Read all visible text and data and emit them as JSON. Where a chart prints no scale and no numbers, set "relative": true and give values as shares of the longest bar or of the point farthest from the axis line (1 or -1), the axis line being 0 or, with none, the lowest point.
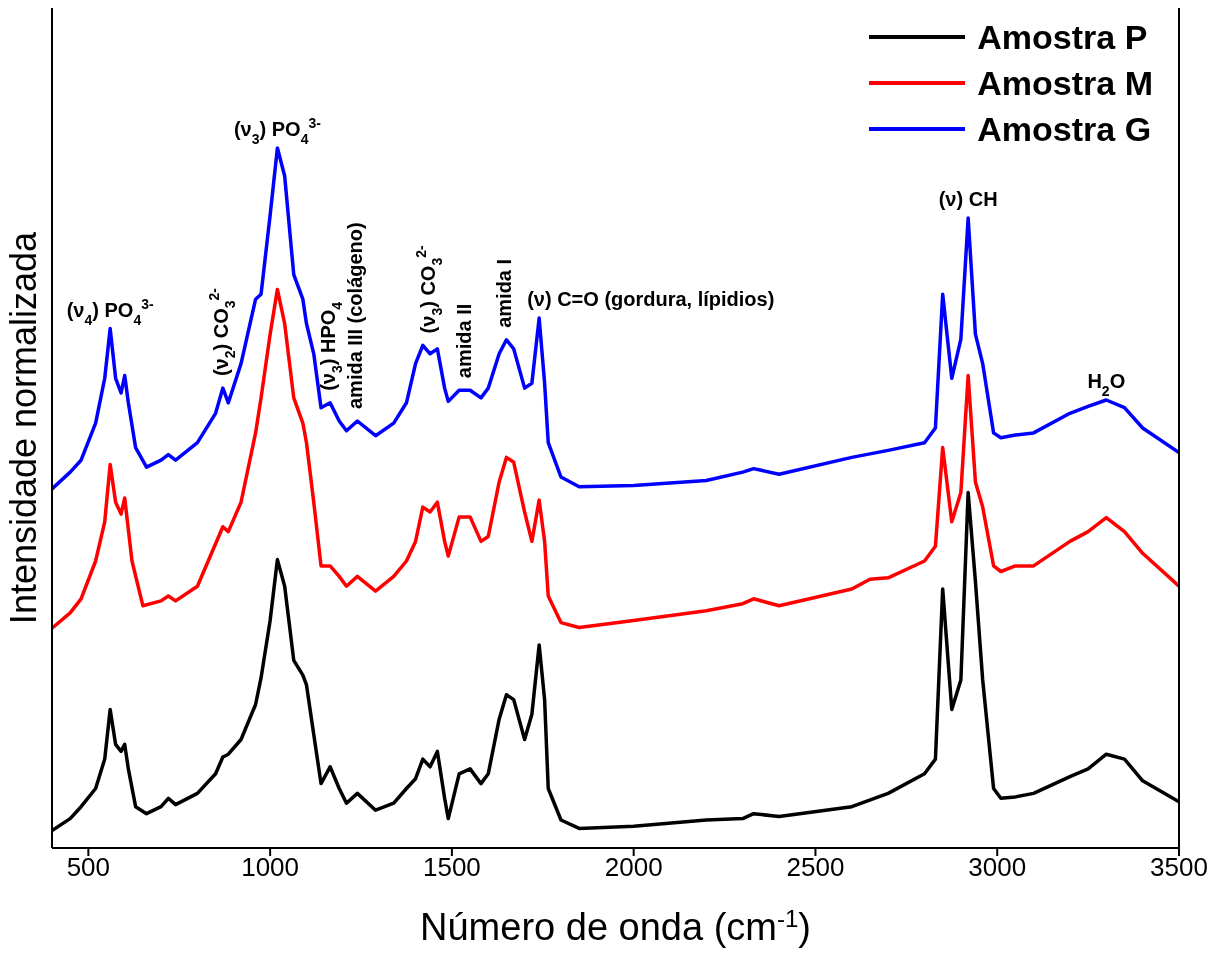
{
  "chart_data": {
    "type": "line",
    "relative": true,
    "xlabel": "Número de onda (cm$^{-1}$)",
    "ylabel": "Intensidade normalizada",
    "xlim": [
      400,
      3500
    ],
    "xticks": [
      500,
      1000,
      1500,
      2000,
      2500,
      3000,
      3500
    ],
    "grid": false,
    "legend": "top right",
    "marker": "none",
    "line_style": "solid",
    "series": [
      {
        "name": "Amostra P",
        "color": "#000000",
        "x": [
          400,
          450,
          480,
          520,
          545,
          560,
          575,
          590,
          600,
          610,
          630,
          660,
          700,
          720,
          740,
          800,
          850,
          870,
          885,
          920,
          960,
          975,
          1000,
          1020,
          1040,
          1065,
          1090,
          1100,
          1120,
          1140,
          1165,
          1190,
          1210,
          1240,
          1290,
          1340,
          1375,
          1400,
          1420,
          1440,
          1460,
          1480,
          1490,
          1520,
          1550,
          1580,
          1600,
          1630,
          1650,
          1670,
          1700,
          1720,
          1740,
          1755,
          1765,
          1800,
          1850,
          2000,
          2200,
          2300,
          2330,
          2400,
          2600,
          2700,
          2800,
          2830,
          2850,
          2875,
          2900,
          2920,
          2940,
          2960,
          2990,
          3010,
          3050,
          3100,
          3200,
          3250,
          3300,
          3350,
          3400,
          3500
        ],
        "values": [
          0.025,
          0.042,
          0.059,
          0.085,
          0.127,
          0.198,
          0.148,
          0.138,
          0.148,
          0.113,
          0.059,
          0.049,
          0.059,
          0.071,
          0.062,
          0.078,
          0.106,
          0.13,
          0.134,
          0.155,
          0.205,
          0.243,
          0.325,
          0.412,
          0.374,
          0.268,
          0.247,
          0.233,
          0.162,
          0.092,
          0.116,
          0.085,
          0.064,
          0.078,
          0.054,
          0.064,
          0.085,
          0.099,
          0.127,
          0.116,
          0.138,
          0.071,
          0.042,
          0.106,
          0.113,
          0.092,
          0.106,
          0.184,
          0.219,
          0.212,
          0.155,
          0.191,
          0.29,
          0.212,
          0.085,
          0.04,
          0.028,
          0.031,
          0.04,
          0.042,
          0.049,
          0.045,
          0.059,
          0.078,
          0.106,
          0.127,
          0.37,
          0.198,
          0.24,
          0.508,
          0.381,
          0.24,
          0.085,
          0.071,
          0.073,
          0.078,
          0.102,
          0.113,
          0.134,
          0.127,
          0.096,
          0.066
        ]
      },
      {
        "name": "Amostra M",
        "color": "#ff0000",
        "x": [
          400,
          450,
          480,
          520,
          545,
          560,
          575,
          590,
          600,
          620,
          650,
          700,
          720,
          740,
          800,
          870,
          885,
          920,
          960,
          975,
          1000,
          1020,
          1040,
          1065,
          1090,
          1100,
          1120,
          1140,
          1165,
          1190,
          1210,
          1240,
          1290,
          1340,
          1375,
          1400,
          1420,
          1440,
          1460,
          1480,
          1490,
          1520,
          1550,
          1580,
          1600,
          1630,
          1650,
          1670,
          1700,
          1720,
          1740,
          1755,
          1765,
          1800,
          1850,
          2000,
          2200,
          2300,
          2330,
          2400,
          2600,
          2650,
          2700,
          2800,
          2830,
          2850,
          2875,
          2900,
          2920,
          2940,
          2960,
          2990,
          3010,
          3050,
          3100,
          3200,
          3250,
          3300,
          3350,
          3400,
          3500
        ],
        "values": [
          0.314,
          0.336,
          0.356,
          0.41,
          0.466,
          0.548,
          0.494,
          0.477,
          0.5,
          0.41,
          0.346,
          0.353,
          0.36,
          0.353,
          0.374,
          0.459,
          0.452,
          0.494,
          0.593,
          0.643,
          0.734,
          0.798,
          0.749,
          0.643,
          0.607,
          0.579,
          0.494,
          0.403,
          0.403,
          0.388,
          0.374,
          0.388,
          0.367,
          0.388,
          0.41,
          0.438,
          0.487,
          0.48,
          0.494,
          0.438,
          0.417,
          0.473,
          0.473,
          0.438,
          0.445,
          0.523,
          0.558,
          0.551,
          0.48,
          0.438,
          0.497,
          0.438,
          0.36,
          0.322,
          0.315,
          0.325,
          0.339,
          0.349,
          0.356,
          0.346,
          0.37,
          0.384,
          0.386,
          0.41,
          0.431,
          0.572,
          0.466,
          0.508,
          0.675,
          0.523,
          0.487,
          0.403,
          0.395,
          0.403,
          0.403,
          0.438,
          0.452,
          0.472,
          0.452,
          0.421,
          0.374
        ]
      },
      {
        "name": "Amostra G",
        "color": "#0000ff",
        "x": [
          400,
          450,
          480,
          520,
          545,
          560,
          575,
          590,
          600,
          610,
          630,
          660,
          700,
          720,
          740,
          800,
          850,
          870,
          885,
          920,
          960,
          975,
          1000,
          1020,
          1040,
          1065,
          1090,
          1100,
          1120,
          1140,
          1165,
          1190,
          1210,
          1240,
          1290,
          1340,
          1375,
          1400,
          1420,
          1440,
          1460,
          1480,
          1490,
          1520,
          1550,
          1580,
          1600,
          1630,
          1650,
          1670,
          1700,
          1720,
          1740,
          1755,
          1765,
          1800,
          1850,
          2000,
          2200,
          2300,
          2330,
          2400,
          2600,
          2700,
          2800,
          2830,
          2850,
          2875,
          2900,
          2920,
          2940,
          2960,
          2990,
          3010,
          3050,
          3100,
          3200,
          3250,
          3300,
          3350,
          3400,
          3500
        ],
        "values": [
          0.513,
          0.537,
          0.554,
          0.607,
          0.671,
          0.742,
          0.671,
          0.65,
          0.675,
          0.636,
          0.572,
          0.544,
          0.554,
          0.562,
          0.554,
          0.579,
          0.621,
          0.657,
          0.636,
          0.692,
          0.784,
          0.791,
          0.904,
          1,
          0.96,
          0.819,
          0.784,
          0.749,
          0.706,
          0.629,
          0.636,
          0.61,
          0.596,
          0.61,
          0.589,
          0.607,
          0.636,
          0.692,
          0.718,
          0.706,
          0.713,
          0.657,
          0.638,
          0.654,
          0.654,
          0.643,
          0.657,
          0.706,
          0.726,
          0.713,
          0.657,
          0.664,
          0.757,
          0.664,
          0.579,
          0.53,
          0.516,
          0.518,
          0.525,
          0.537,
          0.542,
          0.534,
          0.558,
          0.568,
          0.579,
          0.6,
          0.791,
          0.671,
          0.727,
          0.9,
          0.734,
          0.692,
          0.593,
          0.586,
          0.59,
          0.593,
          0.621,
          0.631,
          0.64,
          0.629,
          0.6,
          0.565
        ]
      }
    ],
    "annotations": [
      {
        "text": "(ν$_{4}$) PO$_{4}$$^{3-}$",
        "x": 560,
        "y": 0.742
      },
      {
        "text": "(ν$_{2}$) CO$_{3}$$^{2-}$",
        "x": 870,
        "y": 0.657
      },
      {
        "text": "(ν$_{3}$) PO$_{4}$$^{3-}$",
        "x": 1020,
        "y": 1
      },
      {
        "text": "(ν$_{3}$) HPO$_{4}$",
        "x": 1165,
        "y": 0.636
      },
      {
        "text": "amida III (colágeno)",
        "x": 1240,
        "y": 0.61
      },
      {
        "text": "(ν$_{3}$) CO$_{3}$$^{2-}$",
        "x": 1440,
        "y": 0.718
      },
      {
        "text": "amida II",
        "x": 1540,
        "y": 0.654
      },
      {
        "text": "amida I",
        "x": 1650,
        "y": 0.726
      },
      {
        "text": "(ν) C=O (gordura, lípidios)",
        "x": 1740,
        "y": 0.757
      },
      {
        "text": "(ν)  CH",
        "x": 2920,
        "y": 0.9
      },
      {
        "text": "H$_{2}$O",
        "x": 3300,
        "y": 0.64
      }
    ]
  }
}
